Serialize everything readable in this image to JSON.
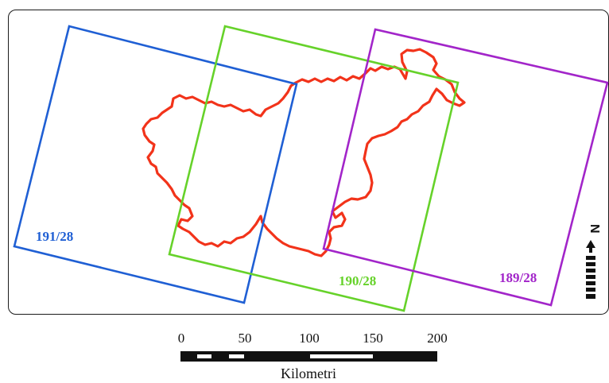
{
  "map": {
    "tiles": [
      {
        "label": "191/28",
        "color": "#1f5fd4"
      },
      {
        "label": "190/28",
        "color": "#66d22a"
      },
      {
        "label": "189/28",
        "color": "#a225c9"
      }
    ],
    "boundary_color": "#f2331a",
    "north_arrow": {
      "icon": "north-arrow-icon",
      "label": "N"
    }
  },
  "scale_bar": {
    "ticks": [
      "0",
      "50",
      "100",
      "150",
      "200"
    ],
    "unit": "Kilometri"
  }
}
